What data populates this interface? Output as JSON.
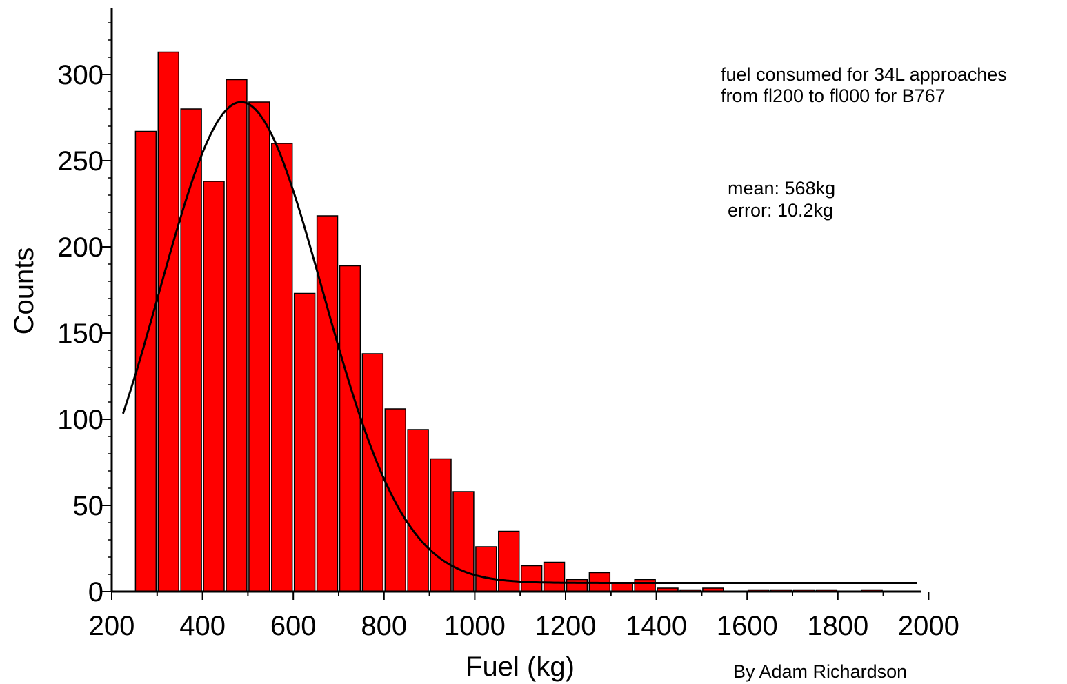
{
  "chart_data": {
    "type": "bar",
    "title": "",
    "xlabel": "Fuel (kg)",
    "ylabel": "Counts",
    "xlim": [
      200,
      2000
    ],
    "ylim": [
      0,
      340
    ],
    "x_ticks": [
      200,
      400,
      600,
      800,
      1000,
      1200,
      1400,
      1600,
      1800,
      2000
    ],
    "y_ticks": [
      0,
      50,
      100,
      150,
      200,
      250,
      300
    ],
    "bin_width": 50,
    "bins": [
      {
        "x0": 250,
        "x1": 300,
        "count": 267
      },
      {
        "x0": 300,
        "x1": 350,
        "count": 313
      },
      {
        "x0": 350,
        "x1": 400,
        "count": 280
      },
      {
        "x0": 400,
        "x1": 450,
        "count": 238
      },
      {
        "x0": 450,
        "x1": 500,
        "count": 297
      },
      {
        "x0": 500,
        "x1": 550,
        "count": 284
      },
      {
        "x0": 550,
        "x1": 600,
        "count": 260
      },
      {
        "x0": 600,
        "x1": 650,
        "count": 173
      },
      {
        "x0": 650,
        "x1": 700,
        "count": 218
      },
      {
        "x0": 700,
        "x1": 750,
        "count": 189
      },
      {
        "x0": 750,
        "x1": 800,
        "count": 138
      },
      {
        "x0": 800,
        "x1": 850,
        "count": 106
      },
      {
        "x0": 850,
        "x1": 900,
        "count": 94
      },
      {
        "x0": 900,
        "x1": 950,
        "count": 77
      },
      {
        "x0": 950,
        "x1": 1000,
        "count": 58
      },
      {
        "x0": 1000,
        "x1": 1050,
        "count": 26
      },
      {
        "x0": 1050,
        "x1": 1100,
        "count": 35
      },
      {
        "x0": 1100,
        "x1": 1150,
        "count": 15
      },
      {
        "x0": 1150,
        "x1": 1200,
        "count": 17
      },
      {
        "x0": 1200,
        "x1": 1250,
        "count": 7
      },
      {
        "x0": 1250,
        "x1": 1300,
        "count": 11
      },
      {
        "x0": 1300,
        "x1": 1350,
        "count": 5
      },
      {
        "x0": 1350,
        "x1": 1400,
        "count": 7
      },
      {
        "x0": 1400,
        "x1": 1450,
        "count": 2
      },
      {
        "x0": 1450,
        "x1": 1500,
        "count": 1
      },
      {
        "x0": 1500,
        "x1": 1550,
        "count": 2
      },
      {
        "x0": 1550,
        "x1": 1600,
        "count": 0
      },
      {
        "x0": 1600,
        "x1": 1650,
        "count": 1
      },
      {
        "x0": 1650,
        "x1": 1700,
        "count": 1
      },
      {
        "x0": 1700,
        "x1": 1750,
        "count": 1
      },
      {
        "x0": 1750,
        "x1": 1800,
        "count": 1
      },
      {
        "x0": 1800,
        "x1": 1850,
        "count": 0
      },
      {
        "x0": 1850,
        "x1": 1900,
        "count": 1
      }
    ],
    "fit_curve": {
      "type": "gaussian",
      "mean": 485,
      "sigma": 180,
      "amplitude": 279,
      "baseline": 5,
      "x_range": [
        225,
        1975
      ],
      "color": "#000000"
    },
    "annotations": [
      {
        "text": "fuel consumed for 34L approaches",
        "placement": "top-right"
      },
      {
        "text": "from fl200 to fl000 for B767",
        "placement": "top-right"
      },
      {
        "text": "mean: 568kg",
        "placement": "right"
      },
      {
        "text": "error: 10.2kg",
        "placement": "right"
      },
      {
        "text": "By Adam Richardson",
        "placement": "bottom-right"
      }
    ],
    "grid": false,
    "legend": "none",
    "colors": {
      "bar_fill": "#ff0000",
      "bar_edge": "#000000",
      "axis": "#000000"
    }
  }
}
